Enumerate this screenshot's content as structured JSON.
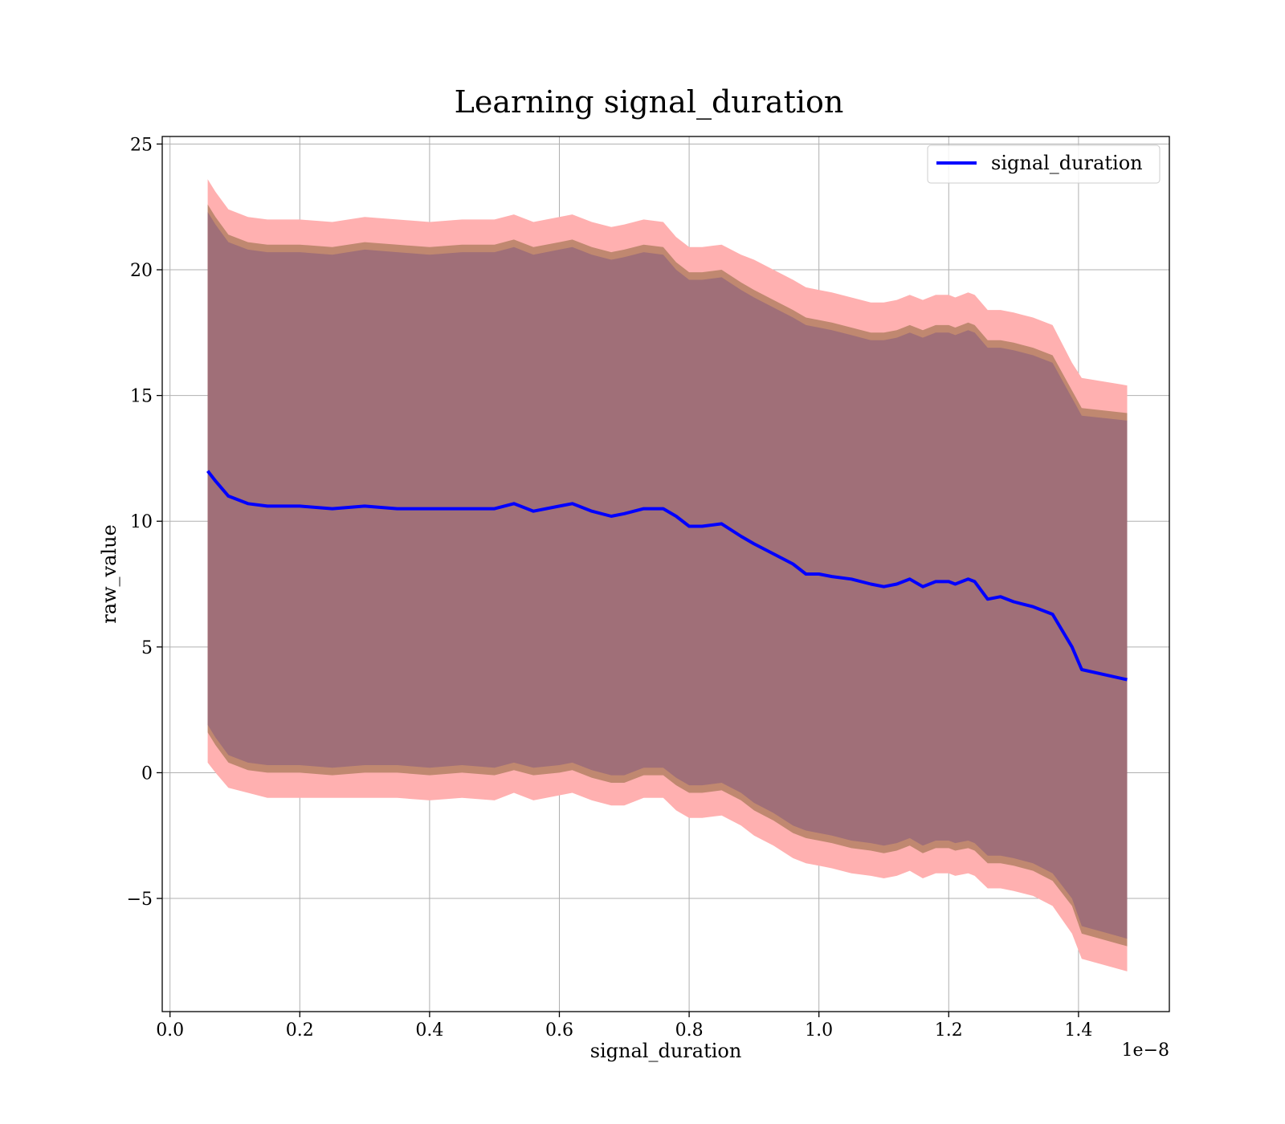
{
  "chart_data": {
    "type": "line",
    "title": "Learning signal_duration",
    "xlabel": "signal_duration",
    "ylabel": "raw_value",
    "x_offset_label": "1e−8",
    "xlim": [
      -0.012,
      1.54
    ],
    "ylim": [
      -9.5,
      25.3
    ],
    "x_ticks": [
      0.0,
      0.2,
      0.4,
      0.6,
      0.8,
      1.0,
      1.2,
      1.4
    ],
    "x_tick_labels": [
      "0.0",
      "0.2",
      "0.4",
      "0.6",
      "0.8",
      "1.0",
      "1.2",
      "1.4"
    ],
    "y_ticks": [
      -5,
      0,
      5,
      10,
      15,
      20,
      25
    ],
    "y_tick_labels": [
      "−5",
      "0",
      "5",
      "10",
      "15",
      "20",
      "25"
    ],
    "grid": true,
    "legend_position": "top-right",
    "legend": [
      "signal_duration"
    ],
    "colors": {
      "line": "#0000ff",
      "outer_band": "#ffb0b0",
      "middle_band": "#c08870",
      "inner_band": "#a06f78",
      "grid": "#b0b0b0"
    },
    "x": [
      0.058,
      0.07,
      0.09,
      0.12,
      0.15,
      0.2,
      0.25,
      0.3,
      0.35,
      0.4,
      0.45,
      0.5,
      0.53,
      0.56,
      0.6,
      0.62,
      0.65,
      0.68,
      0.7,
      0.73,
      0.76,
      0.78,
      0.8,
      0.82,
      0.85,
      0.88,
      0.9,
      0.93,
      0.96,
      0.98,
      1.0,
      1.02,
      1.05,
      1.08,
      1.1,
      1.12,
      1.14,
      1.16,
      1.18,
      1.2,
      1.21,
      1.23,
      1.24,
      1.26,
      1.28,
      1.3,
      1.33,
      1.36,
      1.39,
      1.405,
      1.475
    ],
    "series": [
      {
        "name": "signal_duration",
        "values": [
          12.0,
          11.6,
          11.0,
          10.7,
          10.6,
          10.6,
          10.5,
          10.6,
          10.5,
          10.5,
          10.5,
          10.5,
          10.7,
          10.4,
          10.6,
          10.7,
          10.4,
          10.2,
          10.3,
          10.5,
          10.5,
          10.2,
          9.8,
          9.8,
          9.9,
          9.4,
          9.1,
          8.7,
          8.3,
          7.9,
          7.9,
          7.8,
          7.7,
          7.5,
          7.4,
          7.5,
          7.7,
          7.4,
          7.6,
          7.6,
          7.5,
          7.7,
          7.6,
          6.9,
          7.0,
          6.8,
          6.6,
          6.3,
          5.0,
          4.1,
          3.7
        ]
      }
    ],
    "bands": [
      {
        "upper": [
          23.6,
          23.1,
          22.4,
          22.1,
          22.0,
          22.0,
          21.9,
          22.1,
          22.0,
          21.9,
          22.0,
          22.0,
          22.2,
          21.9,
          22.1,
          22.2,
          21.9,
          21.7,
          21.8,
          22.0,
          21.9,
          21.3,
          20.9,
          20.9,
          21.0,
          20.6,
          20.4,
          20.0,
          19.6,
          19.3,
          19.2,
          19.1,
          18.9,
          18.7,
          18.7,
          18.8,
          19.0,
          18.8,
          19.0,
          19.0,
          18.9,
          19.1,
          19.0,
          18.4,
          18.4,
          18.3,
          18.1,
          17.8,
          16.3,
          15.7,
          15.4
        ],
        "lower": [
          0.4,
          0.0,
          -0.6,
          -0.8,
          -1.0,
          -1.0,
          -1.0,
          -1.0,
          -1.0,
          -1.1,
          -1.0,
          -1.1,
          -0.8,
          -1.1,
          -0.9,
          -0.8,
          -1.1,
          -1.3,
          -1.3,
          -1.0,
          -1.0,
          -1.5,
          -1.8,
          -1.8,
          -1.7,
          -2.1,
          -2.5,
          -2.9,
          -3.4,
          -3.6,
          -3.7,
          -3.8,
          -4.0,
          -4.1,
          -4.2,
          -4.1,
          -3.9,
          -4.2,
          -4.0,
          -4.0,
          -4.1,
          -4.0,
          -4.1,
          -4.6,
          -4.6,
          -4.7,
          -4.9,
          -5.3,
          -6.4,
          -7.4,
          -7.9
        ]
      },
      {
        "upper": [
          22.6,
          22.1,
          21.4,
          21.1,
          21.0,
          21.0,
          20.9,
          21.1,
          21.0,
          20.9,
          21.0,
          21.0,
          21.2,
          20.9,
          21.1,
          21.2,
          20.9,
          20.7,
          20.8,
          21.0,
          20.9,
          20.3,
          19.9,
          19.9,
          20.0,
          19.5,
          19.2,
          18.8,
          18.4,
          18.1,
          18.0,
          17.9,
          17.7,
          17.5,
          17.5,
          17.6,
          17.8,
          17.6,
          17.8,
          17.8,
          17.7,
          17.9,
          17.8,
          17.2,
          17.2,
          17.1,
          16.9,
          16.6,
          15.2,
          14.5,
          14.3
        ],
        "lower": [
          1.6,
          1.1,
          0.4,
          0.1,
          0.0,
          0.0,
          -0.1,
          0.0,
          0.0,
          -0.1,
          0.0,
          -0.1,
          0.1,
          -0.1,
          0.0,
          0.1,
          -0.2,
          -0.4,
          -0.4,
          -0.1,
          -0.1,
          -0.5,
          -0.8,
          -0.8,
          -0.7,
          -1.1,
          -1.5,
          -1.9,
          -2.4,
          -2.6,
          -2.7,
          -2.8,
          -3.0,
          -3.1,
          -3.2,
          -3.1,
          -2.9,
          -3.2,
          -3.0,
          -3.0,
          -3.1,
          -3.0,
          -3.1,
          -3.6,
          -3.6,
          -3.7,
          -3.9,
          -4.3,
          -5.3,
          -6.4,
          -6.9
        ]
      },
      {
        "upper": [
          22.3,
          21.8,
          21.1,
          20.8,
          20.7,
          20.7,
          20.6,
          20.8,
          20.7,
          20.6,
          20.7,
          20.7,
          20.9,
          20.6,
          20.8,
          20.9,
          20.6,
          20.4,
          20.5,
          20.7,
          20.6,
          20.0,
          19.6,
          19.6,
          19.7,
          19.2,
          18.9,
          18.5,
          18.1,
          17.8,
          17.7,
          17.6,
          17.4,
          17.2,
          17.2,
          17.3,
          17.5,
          17.3,
          17.5,
          17.5,
          17.4,
          17.6,
          17.5,
          16.9,
          16.9,
          16.8,
          16.6,
          16.3,
          14.9,
          14.2,
          14.0
        ],
        "lower": [
          1.9,
          1.4,
          0.7,
          0.4,
          0.3,
          0.3,
          0.2,
          0.3,
          0.3,
          0.2,
          0.3,
          0.2,
          0.4,
          0.2,
          0.3,
          0.4,
          0.1,
          -0.1,
          -0.1,
          0.2,
          0.2,
          -0.2,
          -0.5,
          -0.5,
          -0.4,
          -0.8,
          -1.2,
          -1.6,
          -2.1,
          -2.3,
          -2.4,
          -2.5,
          -2.7,
          -2.8,
          -2.9,
          -2.8,
          -2.6,
          -2.9,
          -2.7,
          -2.7,
          -2.8,
          -2.7,
          -2.8,
          -3.3,
          -3.3,
          -3.4,
          -3.6,
          -4.0,
          -5.0,
          -6.1,
          -6.6
        ]
      }
    ]
  }
}
